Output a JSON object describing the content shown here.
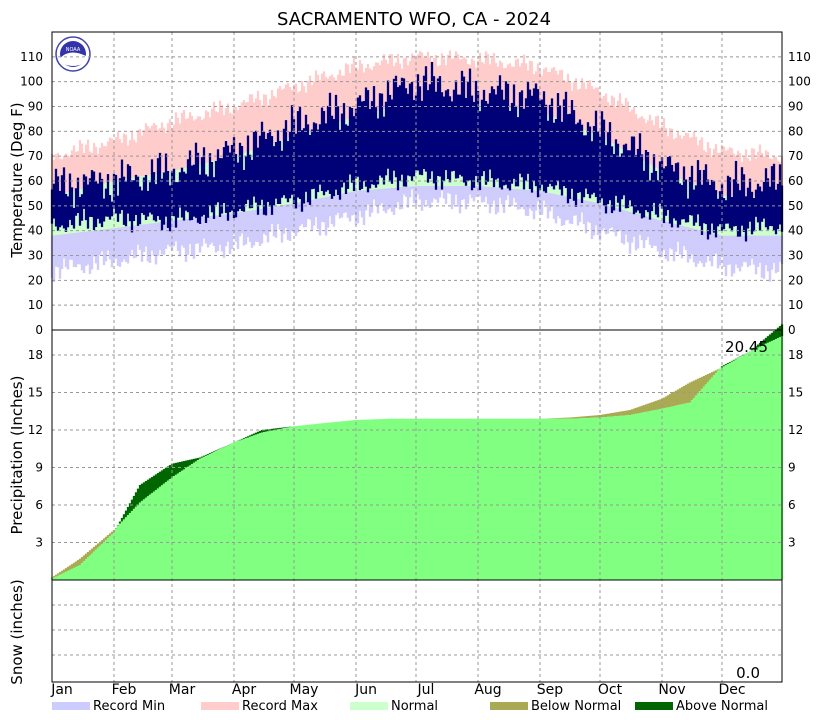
{
  "chart_data": {
    "type": "area",
    "title": "SACRAMENTO  WFO, CA - 2024",
    "months": [
      "Jan",
      "Feb",
      "Mar",
      "Apr",
      "May",
      "Jun",
      "Jul",
      "Aug",
      "Sep",
      "Oct",
      "Nov",
      "Dec"
    ],
    "legend": [
      {
        "label": "Record Min",
        "color": "#ccccff"
      },
      {
        "label": "Record Max",
        "color": "#ffcccc"
      },
      {
        "label": "Normal",
        "color": "#ccffcc"
      },
      {
        "label": "Below Normal",
        "color": "#aaaa55"
      },
      {
        "label": "Above Normal",
        "color": "#006600"
      }
    ],
    "colors": {
      "record_min": "#ccccff",
      "record_max": "#ffcccc",
      "normal": "#ccffcc",
      "observed": "#000077",
      "precip_normal": "#80ff80",
      "below_normal": "#aaaa55",
      "above_normal": "#006600",
      "grid": "#999999"
    },
    "temperature": {
      "ylabel": "Temperature (Deg F)",
      "ylim": [
        0,
        120
      ],
      "ticks": [
        0,
        10,
        20,
        30,
        40,
        50,
        60,
        70,
        80,
        90,
        100,
        110
      ],
      "x_day_of_year": [
        1,
        32,
        61,
        92,
        122,
        153,
        183,
        214,
        245,
        275,
        306,
        336,
        366
      ],
      "record_max": [
        70,
        76,
        84,
        90,
        98,
        106,
        110,
        109,
        106,
        96,
        82,
        72,
        70
      ],
      "normal_high": [
        54,
        60,
        64,
        70,
        78,
        86,
        92,
        91,
        88,
        78,
        64,
        54,
        54
      ],
      "normal_low": [
        38,
        41,
        44,
        47,
        51,
        56,
        58,
        58,
        56,
        51,
        44,
        38,
        38
      ],
      "record_min": [
        24,
        28,
        32,
        34,
        40,
        46,
        52,
        52,
        48,
        40,
        32,
        26,
        24
      ],
      "observed_high": [
        58,
        60,
        64,
        72,
        82,
        90,
        100,
        96,
        94,
        80,
        66,
        58,
        60
      ],
      "observed_low": [
        42,
        45,
        44,
        48,
        52,
        58,
        62,
        60,
        58,
        52,
        46,
        40,
        42
      ]
    },
    "precipitation": {
      "ylabel": "Precipitation (Inches)",
      "ylim": [
        0,
        20
      ],
      "ticks": [
        3,
        6,
        9,
        12,
        15,
        18
      ],
      "total_label": "20.45",
      "x_day_of_year": [
        1,
        15,
        32,
        45,
        61,
        75,
        92,
        106,
        122,
        140,
        153,
        170,
        183,
        214,
        245,
        260,
        275,
        290,
        306,
        320,
        336,
        350,
        366
      ],
      "normal_cum": [
        0.2,
        1.7,
        4.0,
        6.2,
        8.2,
        9.7,
        11.0,
        11.8,
        12.3,
        12.6,
        12.8,
        12.9,
        12.9,
        12.9,
        12.9,
        13.0,
        13.2,
        13.6,
        14.5,
        15.8,
        17.0,
        18.3,
        19.5
      ],
      "observed_cum": [
        0.1,
        1.2,
        3.8,
        7.6,
        9.3,
        9.8,
        11.0,
        12.0,
        12.3,
        12.6,
        12.8,
        12.9,
        12.9,
        12.9,
        12.9,
        12.9,
        13.0,
        13.2,
        13.7,
        14.2,
        17.1,
        18.3,
        20.45
      ]
    },
    "snow": {
      "ylabel": "Snow (inches)",
      "total_label": "0.0"
    }
  }
}
